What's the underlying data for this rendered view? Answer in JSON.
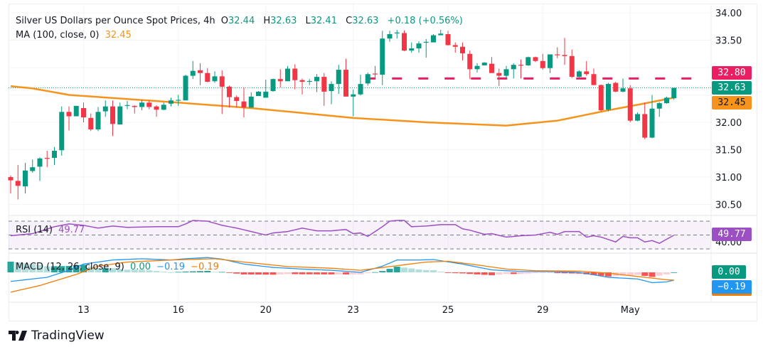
{
  "header": {
    "title": "Silver US Dollars per Ounce Spot Prices, 4h",
    "open_label": "O",
    "open": "32.44",
    "high_label": "H",
    "high": "32.63",
    "low_label": "L",
    "low": "32.41",
    "close_label": "C",
    "close": "32.63",
    "change": "+0.18 (+0.56%)",
    "ma_label": "MA (100, close, 0)",
    "ma_value": "32.45"
  },
  "rsi": {
    "label": "RSI (14)",
    "value": "49.77",
    "axis_label": "40.00"
  },
  "macd": {
    "label": "MACD (12, 26, close, 9)",
    "hist": "0.00",
    "macd": "−0.19",
    "signal": "−0.19"
  },
  "price_tags": {
    "resistance": "32.80",
    "last": "32.63",
    "ma": "32.45"
  },
  "macd_tags": {
    "hist": "0.00",
    "macd": "−0.19"
  },
  "logo": "TradingView",
  "colors": {
    "up": "#089981",
    "down": "#f23645",
    "ma": "#f7931a",
    "resistance": "#e91e63",
    "rsi": "#9c4fc2",
    "macd": "#2196f3",
    "signal": "#f57c00",
    "tag_rsi": "#9c4fc2"
  },
  "chart_data": {
    "type": "candlestick",
    "title": "Silver US Dollars per Ounce Spot Prices, 4h",
    "y_ticks": [
      "34.00",
      "33.50",
      "32.00",
      "31.50",
      "31.00",
      "30.50"
    ],
    "ylim": [
      30.3,
      34.0
    ],
    "x_ticks": [
      {
        "label": "13",
        "index": 10
      },
      {
        "label": "16",
        "index": 23
      },
      {
        "label": "20",
        "index": 35
      },
      {
        "label": "23",
        "index": 47
      },
      {
        "label": "25",
        "index": 60
      },
      {
        "label": "29",
        "index": 73
      },
      {
        "label": "May",
        "index": 85
      }
    ],
    "resistance": {
      "value": 32.8,
      "from_index": 49
    },
    "ohlc": [
      [
        31.0,
        30.94,
        31.03,
        30.7
      ],
      [
        30.93,
        30.84,
        31.22,
        30.59
      ],
      [
        30.83,
        31.12,
        31.26,
        30.7
      ],
      [
        31.11,
        31.18,
        31.32,
        31.08
      ],
      [
        31.19,
        31.34,
        31.36,
        30.93
      ],
      [
        31.35,
        31.34,
        31.48,
        31.18
      ],
      [
        31.35,
        31.48,
        31.55,
        31.22
      ],
      [
        31.49,
        32.19,
        32.29,
        31.39
      ],
      [
        32.19,
        32.11,
        32.29,
        31.85
      ],
      [
        32.11,
        32.3,
        32.3,
        32.11
      ],
      [
        32.26,
        32.09,
        32.36,
        32.0
      ],
      [
        32.08,
        31.87,
        32.16,
        31.84
      ],
      [
        31.87,
        32.19,
        32.28,
        31.84
      ],
      [
        32.2,
        32.29,
        32.4,
        32.1
      ],
      [
        32.29,
        31.97,
        32.4,
        31.75
      ],
      [
        31.96,
        32.29,
        32.36,
        31.96
      ],
      [
        32.31,
        32.315,
        32.39,
        32.24
      ],
      [
        32.3,
        32.28,
        32.31,
        32.16
      ],
      [
        32.28,
        32.36,
        32.41,
        32.22
      ],
      [
        32.36,
        32.28,
        32.4,
        32.24
      ],
      [
        32.29,
        32.23,
        32.31,
        32.1
      ],
      [
        32.23,
        32.32,
        32.36,
        32.22
      ],
      [
        32.34,
        32.4,
        32.45,
        32.29
      ],
      [
        32.4,
        32.41,
        32.5,
        32.3
      ],
      [
        32.4,
        32.85,
        32.87,
        32.4
      ],
      [
        32.85,
        32.94,
        33.12,
        32.79
      ],
      [
        32.95,
        32.9,
        33.08,
        32.68
      ],
      [
        32.9,
        32.74,
        32.99,
        32.73
      ],
      [
        32.75,
        32.84,
        32.93,
        32.72
      ],
      [
        32.84,
        32.65,
        32.95,
        32.15
      ],
      [
        32.65,
        32.46,
        32.67,
        32.27
      ],
      [
        32.46,
        32.39,
        32.49,
        32.27
      ],
      [
        32.38,
        32.27,
        32.64,
        32.09
      ],
      [
        32.27,
        32.47,
        32.55,
        32.27
      ],
      [
        32.48,
        32.56,
        32.57,
        32.48
      ],
      [
        32.45,
        32.56,
        32.78,
        32.45
      ],
      [
        32.57,
        32.79,
        32.8,
        32.56
      ],
      [
        32.79,
        32.75,
        32.97,
        32.64
      ],
      [
        32.75,
        32.98,
        33.03,
        32.75
      ],
      [
        32.98,
        32.77,
        33.06,
        32.6
      ],
      [
        32.77,
        32.74,
        32.8,
        32.51
      ],
      [
        32.75,
        32.755,
        32.79,
        32.68
      ],
      [
        32.75,
        32.83,
        32.88,
        32.55
      ],
      [
        32.83,
        32.56,
        32.9,
        32.3
      ],
      [
        32.57,
        32.7,
        32.75,
        32.33
      ],
      [
        32.7,
        32.96,
        33.05,
        32.52
      ],
      [
        32.96,
        32.47,
        33.16,
        32.47
      ],
      [
        32.47,
        32.51,
        32.6,
        32.11
      ],
      [
        32.51,
        32.7,
        32.87,
        32.49
      ],
      [
        32.71,
        32.88,
        32.91,
        32.67
      ],
      [
        32.89,
        32.88,
        33.03,
        32.82
      ],
      [
        32.87,
        33.53,
        33.67,
        32.68
      ],
      [
        33.53,
        33.61,
        33.67,
        33.47
      ],
      [
        33.63,
        33.64,
        33.69,
        33.53
      ],
      [
        33.63,
        33.31,
        33.68,
        33.3
      ],
      [
        33.31,
        33.35,
        33.46,
        33.27
      ],
      [
        33.35,
        33.44,
        33.48,
        33.27
      ],
      [
        33.46,
        33.47,
        33.52,
        33.18
      ],
      [
        33.46,
        33.59,
        33.61,
        33.46
      ],
      [
        33.59,
        33.62,
        33.69,
        33.59
      ],
      [
        33.61,
        33.41,
        33.67,
        33.4
      ],
      [
        33.41,
        33.38,
        33.46,
        33.27
      ],
      [
        33.38,
        33.26,
        33.46,
        33.13
      ],
      [
        33.25,
        32.97,
        33.31,
        32.79
      ],
      [
        32.97,
        33.03,
        33.08,
        32.91
      ],
      [
        33.04,
        33.09,
        33.1,
        33.04
      ],
      [
        33.07,
        32.9,
        33.19,
        32.9
      ],
      [
        32.9,
        32.85,
        32.98,
        32.66
      ],
      [
        32.85,
        32.97,
        33.03,
        32.8
      ],
      [
        32.97,
        33.05,
        33.08,
        32.8
      ],
      [
        33.05,
        33.04,
        33.15,
        32.8
      ],
      [
        33.04,
        33.19,
        33.2,
        33.03
      ],
      [
        33.19,
        33.12,
        33.2,
        33.1
      ],
      [
        33.12,
        32.99,
        33.25,
        32.96
      ],
      [
        32.99,
        33.24,
        33.24,
        32.9
      ],
      [
        33.24,
        33.23,
        33.37,
        33.17
      ],
      [
        33.23,
        33.21,
        33.54,
        33.05
      ],
      [
        33.21,
        32.83,
        33.33,
        32.81
      ],
      [
        32.83,
        32.93,
        32.95,
        32.82
      ],
      [
        32.93,
        32.88,
        33.12,
        32.85
      ],
      [
        32.88,
        32.68,
        32.98,
        32.68
      ],
      [
        32.68,
        32.22,
        32.69,
        32.2
      ],
      [
        32.23,
        32.7,
        32.72,
        32.2
      ],
      [
        32.72,
        32.56,
        32.74,
        32.55
      ],
      [
        32.56,
        32.62,
        32.8,
        32.55
      ],
      [
        32.62,
        32.03,
        32.68,
        32.0
      ],
      [
        32.03,
        32.15,
        32.18,
        32.02
      ],
      [
        32.15,
        31.72,
        32.36,
        31.69
      ],
      [
        31.72,
        32.25,
        32.5,
        31.71
      ],
      [
        32.25,
        32.35,
        32.37,
        32.1
      ],
      [
        32.35,
        32.45,
        32.47,
        32.34
      ],
      [
        32.44,
        32.63,
        32.63,
        32.41
      ]
    ],
    "ma_points": [
      [
        0,
        32.66
      ],
      [
        3,
        32.62
      ],
      [
        8,
        32.5
      ],
      [
        23,
        32.36
      ],
      [
        33,
        32.26
      ],
      [
        47,
        32.08
      ],
      [
        57,
        32.0
      ],
      [
        68,
        31.94
      ],
      [
        75,
        32.03
      ],
      [
        82,
        32.22
      ],
      [
        86,
        32.32
      ],
      [
        91,
        32.45
      ]
    ],
    "rsi_points": [
      [
        0,
        49
      ],
      [
        3,
        52
      ],
      [
        6,
        62
      ],
      [
        8,
        66
      ],
      [
        10,
        64
      ],
      [
        12,
        60
      ],
      [
        14,
        63
      ],
      [
        16,
        61
      ],
      [
        20,
        62
      ],
      [
        23,
        62
      ],
      [
        24,
        66
      ],
      [
        25,
        71
      ],
      [
        27,
        70
      ],
      [
        29,
        64
      ],
      [
        31,
        60
      ],
      [
        33,
        55
      ],
      [
        35,
        50
      ],
      [
        36,
        53
      ],
      [
        38,
        55
      ],
      [
        40,
        60
      ],
      [
        42,
        56
      ],
      [
        44,
        56
      ],
      [
        46,
        58
      ],
      [
        47,
        52
      ],
      [
        48,
        53
      ],
      [
        49,
        48
      ],
      [
        50,
        55
      ],
      [
        51,
        62
      ],
      [
        52,
        70
      ],
      [
        53,
        71
      ],
      [
        54,
        71
      ],
      [
        55,
        62
      ],
      [
        57,
        63
      ],
      [
        59,
        65
      ],
      [
        61,
        65
      ],
      [
        62,
        59
      ],
      [
        63,
        57
      ],
      [
        65,
        51
      ],
      [
        66,
        52
      ],
      [
        68,
        47
      ],
      [
        70,
        49
      ],
      [
        72,
        50
      ],
      [
        74,
        54
      ],
      [
        75,
        51
      ],
      [
        76,
        55
      ],
      [
        78,
        55
      ],
      [
        79,
        47
      ],
      [
        80,
        49
      ],
      [
        81,
        47
      ],
      [
        83,
        40
      ],
      [
        84,
        48
      ],
      [
        85,
        46
      ],
      [
        86,
        46
      ],
      [
        87,
        40
      ],
      [
        88,
        42
      ],
      [
        89,
        38
      ],
      [
        90,
        44
      ],
      [
        91,
        49.77
      ]
    ],
    "rsi_levels": [
      70,
      50,
      30
    ],
    "macd_points": [
      [
        0,
        -0.22
      ],
      [
        5,
        -0.12
      ],
      [
        8,
        0.05
      ],
      [
        10,
        0.2
      ],
      [
        14,
        0.3
      ],
      [
        18,
        0.33
      ],
      [
        22,
        0.3
      ],
      [
        24,
        0.33
      ],
      [
        27,
        0.36
      ],
      [
        29,
        0.32
      ],
      [
        32,
        0.2
      ],
      [
        36,
        0.12
      ],
      [
        40,
        0.08
      ],
      [
        44,
        0.05
      ],
      [
        48,
        0.0
      ],
      [
        51,
        0.15
      ],
      [
        53,
        0.3
      ],
      [
        56,
        0.3
      ],
      [
        58,
        0.31
      ],
      [
        62,
        0.2
      ],
      [
        66,
        0.06
      ],
      [
        70,
        0.02
      ],
      [
        74,
        0.02
      ],
      [
        78,
        0.0
      ],
      [
        82,
        -0.12
      ],
      [
        86,
        -0.16
      ],
      [
        88,
        -0.25
      ],
      [
        90,
        -0.23
      ],
      [
        91,
        -0.19
      ]
    ],
    "signal_points": [
      [
        0,
        -0.48
      ],
      [
        4,
        -0.32
      ],
      [
        9,
        -0.05
      ],
      [
        12,
        0.15
      ],
      [
        16,
        0.25
      ],
      [
        22,
        0.3
      ],
      [
        28,
        0.33
      ],
      [
        32,
        0.25
      ],
      [
        38,
        0.14
      ],
      [
        44,
        0.1
      ],
      [
        48,
        0.05
      ],
      [
        52,
        0.14
      ],
      [
        57,
        0.25
      ],
      [
        60,
        0.27
      ],
      [
        64,
        0.18
      ],
      [
        68,
        0.08
      ],
      [
        72,
        0.04
      ],
      [
        78,
        0.03
      ],
      [
        82,
        -0.02
      ],
      [
        86,
        -0.1
      ],
      [
        90,
        -0.18
      ],
      [
        91,
        -0.19
      ]
    ]
  }
}
